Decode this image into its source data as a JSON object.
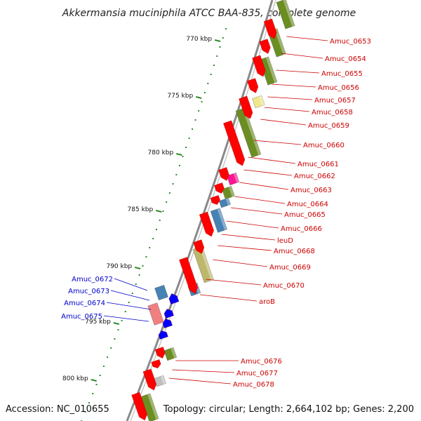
{
  "title": "Akkermansia muciniphila ATCC BAA-835, complete genome",
  "footer": {
    "accession": "Accession: NC_010655",
    "summary": "Topology: circular; Length: 2,664,102 bp; Genes: 2,200"
  },
  "colors": {
    "backbone": "#8a8a8a",
    "cds_red": "#ff0000",
    "cds_blue": "#0000ff",
    "label_red": "#cc0000",
    "label_blue": "#0000cc",
    "cog_olive": "#6b8e23",
    "cog_khaki": "#bdb76b",
    "cog_steelblue": "#4682b4",
    "cog_yellow": "#f0e68c",
    "cog_pink": "#ff1493",
    "cog_salmon": "#f08080",
    "cog_gray": "#c0c0c0",
    "scale_dots": "#2e8b2e"
  },
  "scale_labels": [
    "770 kbp",
    "775 kbp",
    "780 kbp",
    "785 kbp",
    "790 kbp",
    "795 kbp",
    "800 kbp"
  ],
  "genes_right": [
    "Amuc_0653",
    "Amuc_0654",
    "Amuc_0655",
    "Amuc_0656",
    "Amuc_0657",
    "Amuc_0658",
    "Amuc_0659",
    "Amuc_0660",
    "Amuc_0661",
    "Amuc_0662",
    "Amuc_0663",
    "Amuc_0664",
    "Amuc_0665",
    "Amuc_0666",
    "leuD",
    "Amuc_0668",
    "Amuc_0669",
    "Amuc_0670",
    "aroB",
    "Amuc_0676",
    "Amuc_0677",
    "Amuc_0678"
  ],
  "genes_left": [
    "Amuc_0672",
    "Amuc_0673",
    "Amuc_0674",
    "Amuc_0675"
  ]
}
